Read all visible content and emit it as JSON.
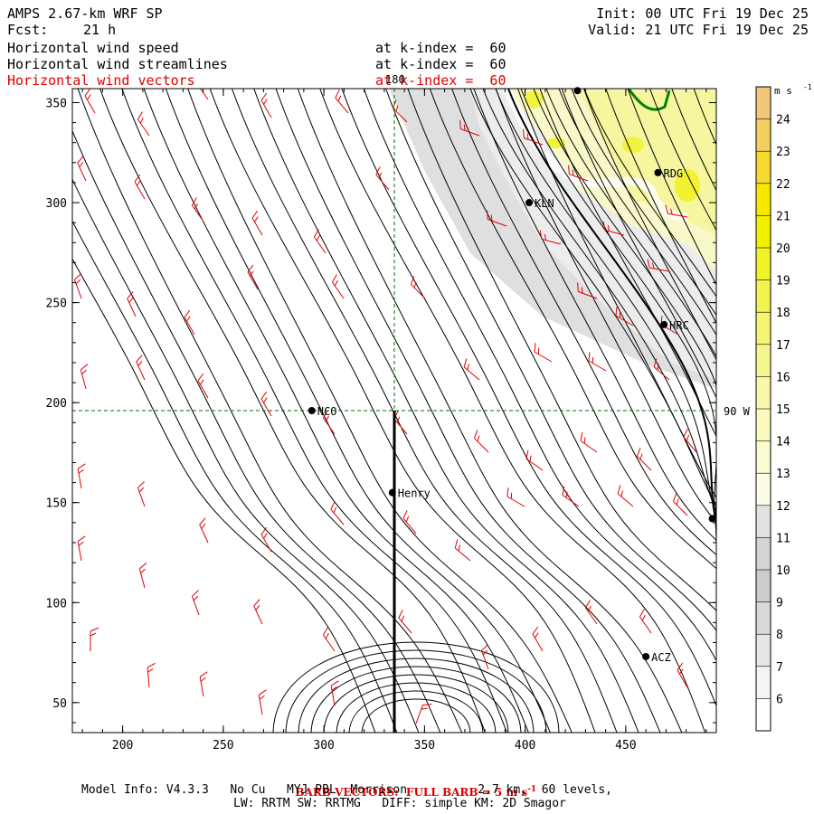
{
  "header": {
    "model": "AMPS 2.67-km WRF SP",
    "fcst_label": "Fcst:",
    "fcst_value": "21 h",
    "init": "Init: 00 UTC Fri 19 Dec 25",
    "valid": "Valid: 21 UTC Fri 19 Dec 25",
    "lines": [
      {
        "name": "Horizontal wind speed",
        "level": "at k-index =  60",
        "color": "#000000"
      },
      {
        "name": "Horizontal wind streamlines",
        "level": "at k-index =  60",
        "color": "#000000"
      },
      {
        "name": "Horizontal wind vectors",
        "level": "at k-index =  60",
        "color": "#e00000"
      }
    ]
  },
  "footer": {
    "barb": "BARB VECTORS:  FULL BARB = 5 m s",
    "barb_sup": "-1",
    "info1": "Model Info: V4.3.3   No Cu   MYJ PBL  Morrison          2.7 km,  60 levels,",
    "info2": "LW: RRTM SW: RRTMG   DIFF: simple KM: 2D Smagor"
  },
  "chart_data": {
    "type": "heatmap",
    "title": "Horizontal wind speed / streamlines / vectors at k-index = 60",
    "xlim": [
      175,
      495
    ],
    "ylim": [
      35,
      357
    ],
    "x_ticks": [
      200,
      250,
      300,
      350,
      400,
      450
    ],
    "y_ticks": [
      50,
      100,
      150,
      200,
      250,
      300,
      350
    ],
    "grid_lines": {
      "longitude_label": "180",
      "latitude_label": "90 W",
      "x": 335,
      "y": 196
    },
    "colorbar": {
      "unit": "m s",
      "unit_sup": "-1",
      "levels": [
        6,
        7,
        8,
        9,
        10,
        11,
        12,
        13,
        14,
        15,
        16,
        17,
        18,
        19,
        20,
        21,
        22,
        23,
        24
      ],
      "colors": [
        "#ffffff",
        "#f4f4f4",
        "#e6e6e6",
        "#d9d9d9",
        "#cccccc",
        "#d4d4d4",
        "#e2e2e2",
        "#fbfbe6",
        "#fbfbd2",
        "#fafac0",
        "#f8f8a8",
        "#f6f690",
        "#f4f470",
        "#f2f250",
        "#f2f228",
        "#f0f000",
        "#f4e800",
        "#f6da30",
        "#f2d060",
        "#f0c878"
      ]
    },
    "stations": [
      {
        "name": "NCO",
        "x": 294,
        "y": 196
      },
      {
        "name": "Henry",
        "x": 334,
        "y": 155
      },
      {
        "name": "KLN",
        "x": 402,
        "y": 300
      },
      {
        "name": "RDG",
        "x": 466,
        "y": 315
      },
      {
        "name": "HRC",
        "x": 469,
        "y": 239
      },
      {
        "name": "ACZ",
        "x": 460,
        "y": 73
      },
      {
        "name": "",
        "x": 493,
        "y": 142
      },
      {
        "name": "",
        "x": 426,
        "y": 356
      }
    ],
    "transect": {
      "x": 335,
      "y_from": 35,
      "y_to": 196
    }
  }
}
